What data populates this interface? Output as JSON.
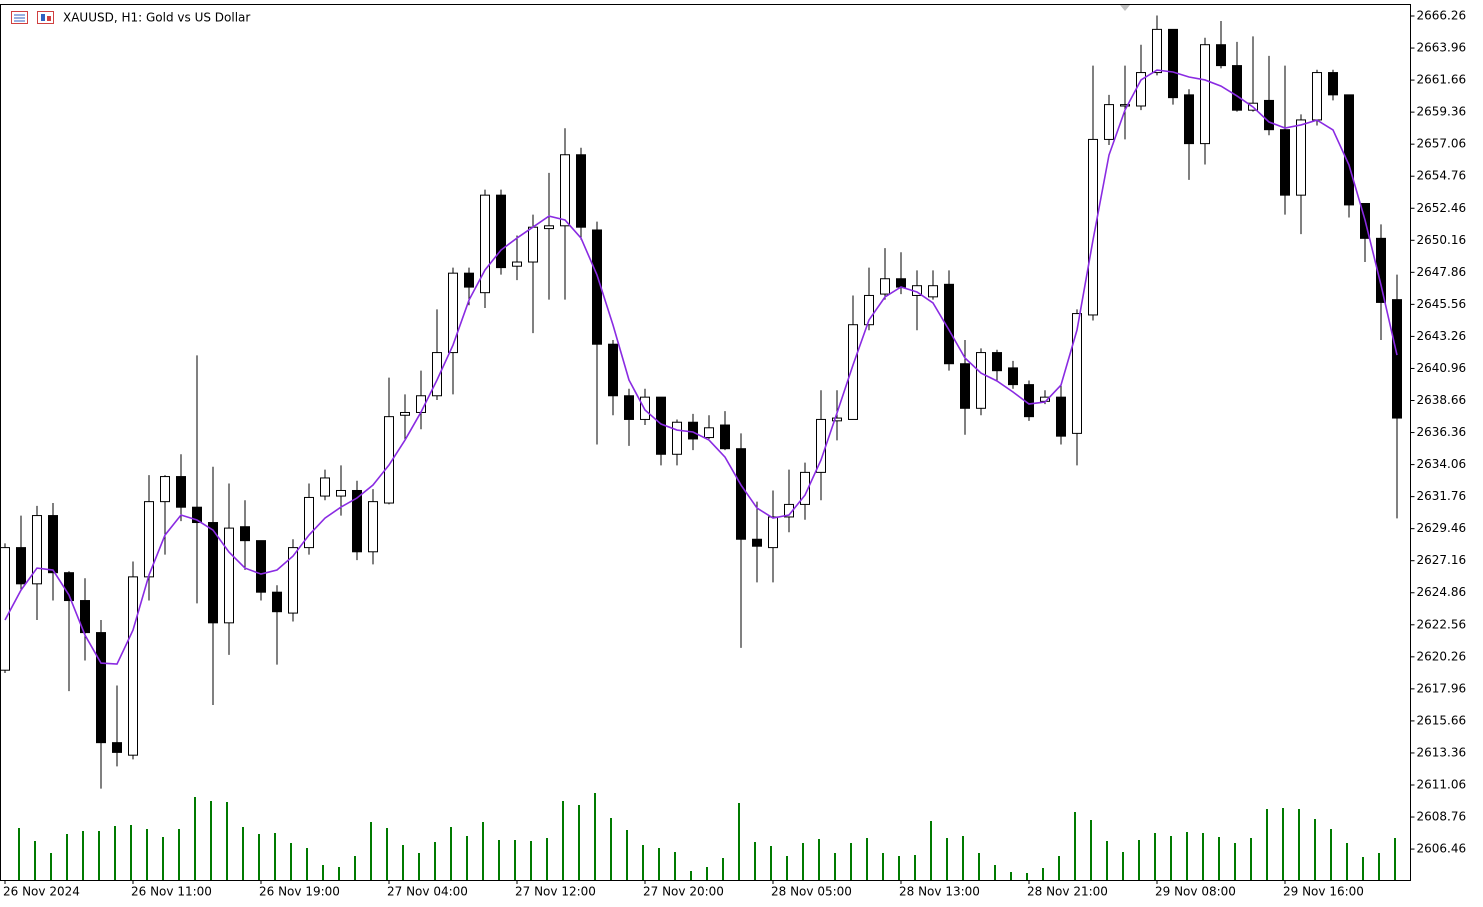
{
  "chart_data": {
    "type": "candlestick",
    "title": "XAUUSD, H1:  Gold vs US Dollar",
    "categories": [
      "26 Nov 2024",
      null,
      null,
      null,
      null,
      null,
      null,
      null,
      "26 Nov 11:00",
      null,
      null,
      null,
      null,
      null,
      null,
      null,
      "26 Nov 19:00",
      null,
      null,
      null,
      null,
      null,
      null,
      null,
      "27 Nov 04:00",
      null,
      null,
      null,
      null,
      null,
      null,
      null,
      "27 Nov 12:00",
      null,
      null,
      null,
      null,
      null,
      null,
      null,
      "27 Nov 20:00",
      null,
      null,
      null,
      null,
      null,
      null,
      null,
      "28 Nov 05:00",
      null,
      null,
      null,
      null,
      null,
      null,
      null,
      "28 Nov 13:00",
      null,
      null,
      null,
      null,
      null,
      null,
      null,
      "28 Nov 21:00",
      null,
      null,
      null,
      null,
      null,
      null,
      null,
      "29 Nov 08:00",
      null,
      null,
      null,
      null,
      null,
      null,
      null,
      "29 Nov 16:00",
      null,
      null,
      null,
      null,
      null,
      null,
      null
    ],
    "open": [
      2619.3,
      2628.1,
      2625.5,
      2630.4,
      2626.3,
      2624.3,
      2622.0,
      2614.1,
      2613.2,
      2626.0,
      2631.4,
      2633.2,
      2631.0,
      2629.9,
      2622.7,
      2629.6,
      2628.6,
      2624.9,
      2623.4,
      2628.1,
      2631.8,
      2631.8,
      2632.2,
      2627.8,
      2631.3,
      2637.6,
      2637.8,
      2639.0,
      2642.1,
      2647.8,
      2646.4,
      2653.4,
      2648.3,
      2648.6,
      2651.0,
      2651.2,
      2656.3,
      2650.9,
      2642.7,
      2639.0,
      2637.3,
      2638.9,
      2634.8,
      2637.1,
      2636.0,
      2636.9,
      2635.2,
      2628.7,
      2628.1,
      2630.3,
      2631.2,
      2633.5,
      2637.2,
      2637.3,
      2644.1,
      2646.3,
      2647.4,
      2646.2,
      2646.1,
      2647.0,
      2641.3,
      2638.1,
      2642.1,
      2641.0,
      2639.8,
      2638.6,
      2638.9,
      2636.3,
      2644.8,
      2657.4,
      2659.8,
      2659.8,
      2662.2,
      2665.3,
      2660.6,
      2657.1,
      2664.2,
      2662.7,
      2659.5,
      2660.2,
      2658.1,
      2653.4,
      2658.8,
      2662.2,
      2660.6,
      2652.8,
      2650.3,
      2645.9
    ],
    "high": [
      2628.4,
      2630.4,
      2631.1,
      2631.3,
      2626.4,
      2625.9,
      2622.9,
      2618.2,
      2627.1,
      2633.3,
      2633.3,
      2634.8,
      2641.9,
      2633.9,
      2632.7,
      2631.5,
      2628.6,
      2625.4,
      2628.7,
      2632.7,
      2633.7,
      2634.0,
      2632.9,
      2632.3,
      2640.3,
      2639.1,
      2640.8,
      2645.2,
      2648.2,
      2648.2,
      2653.8,
      2653.8,
      2650.5,
      2652.0,
      2655.0,
      2658.2,
      2656.8,
      2651.5,
      2643.0,
      2639.5,
      2639.5,
      2638.9,
      2637.3,
      2637.7,
      2637.6,
      2637.9,
      2636.3,
      2631.4,
      2632.2,
      2633.7,
      2634.2,
      2639.4,
      2639.4,
      2646.2,
      2648.2,
      2649.6,
      2649.3,
      2648.0,
      2648.0,
      2648.0,
      2643.0,
      2642.4,
      2642.3,
      2641.5,
      2640.1,
      2639.4,
      2639.8,
      2645.2,
      2662.7,
      2660.6,
      2662.7,
      2664.2,
      2666.3,
      2665.3,
      2661.0,
      2664.7,
      2665.9,
      2664.4,
      2664.8,
      2663.4,
      2662.7,
      2659.2,
      2662.4,
      2662.4,
      2660.6,
      2652.8,
      2651.3,
      2647.7
    ],
    "low": [
      2619.1,
      2625.0,
      2622.9,
      2624.3,
      2617.8,
      2620.0,
      2610.8,
      2612.4,
      2612.9,
      2624.3,
      2627.6,
      2630.0,
      2624.1,
      2616.8,
      2620.4,
      2626.5,
      2624.3,
      2619.7,
      2622.8,
      2627.6,
      2631.5,
      2630.4,
      2627.2,
      2626.9,
      2631.2,
      2635.8,
      2636.6,
      2638.7,
      2639.1,
      2645.5,
      2645.3,
      2647.7,
      2647.3,
      2643.5,
      2645.9,
      2645.9,
      2650.2,
      2635.5,
      2637.6,
      2635.4,
      2636.9,
      2634.0,
      2634.0,
      2635.1,
      2635.9,
      2635.1,
      2620.9,
      2625.6,
      2625.6,
      2629.2,
      2630.1,
      2631.5,
      2635.8,
      2637.3,
      2643.7,
      2645.9,
      2646.3,
      2643.7,
      2645.9,
      2640.8,
      2636.2,
      2637.6,
      2640.1,
      2639.5,
      2637.2,
      2638.4,
      2635.5,
      2634.0,
      2644.4,
      2657.0,
      2657.4,
      2659.5,
      2662.0,
      2659.9,
      2654.5,
      2655.6,
      2662.5,
      2659.4,
      2659.4,
      2657.7,
      2652.0,
      2650.6,
      2658.4,
      2660.2,
      2651.8,
      2648.6,
      2643.0,
      2630.2
    ],
    "close": [
      2628.1,
      2625.5,
      2630.4,
      2626.3,
      2624.3,
      2622.0,
      2614.1,
      2613.4,
      2626.0,
      2631.4,
      2633.2,
      2631.0,
      2629.9,
      2622.7,
      2629.5,
      2628.6,
      2624.9,
      2623.5,
      2628.1,
      2631.7,
      2633.1,
      2632.2,
      2627.8,
      2631.4,
      2637.5,
      2637.8,
      2639.0,
      2642.1,
      2647.8,
      2646.8,
      2653.4,
      2648.2,
      2648.6,
      2651.1,
      2651.2,
      2656.3,
      2651.1,
      2642.7,
      2639.0,
      2637.3,
      2638.9,
      2634.8,
      2637.1,
      2635.9,
      2636.7,
      2635.2,
      2628.7,
      2628.2,
      2630.3,
      2631.2,
      2633.5,
      2637.3,
      2637.4,
      2644.1,
      2646.2,
      2647.4,
      2646.8,
      2646.9,
      2646.9,
      2641.3,
      2638.1,
      2642.1,
      2640.8,
      2639.8,
      2637.5,
      2638.9,
      2636.1,
      2644.9,
      2657.4,
      2659.9,
      2659.9,
      2662.2,
      2665.3,
      2660.4,
      2657.1,
      2664.2,
      2662.7,
      2659.5,
      2660.0,
      2658.1,
      2653.4,
      2658.8,
      2662.2,
      2660.6,
      2652.7,
      2650.3,
      2645.7,
      2637.4
    ],
    "ma": [
      2622.9,
      2625.05,
      2626.63,
      2626.49,
      2624.69,
      2621.82,
      2619.81,
      2619.74,
      2622.18,
      2626.13,
      2629.0,
      2630.44,
      2630.08,
      2629.36,
      2627.78,
      2626.63,
      2626.2,
      2626.49,
      2627.49,
      2629.0,
      2630.22,
      2631.01,
      2631.66,
      2632.59,
      2634.03,
      2635.82,
      2637.83,
      2640.13,
      2642.64,
      2645.87,
      2648.03,
      2649.46,
      2650.32,
      2651.11,
      2651.9,
      2651.62,
      2650.32,
      2647.67,
      2644.08,
      2640.13,
      2637.98,
      2636.97,
      2636.54,
      2636.4,
      2635.82,
      2634.6,
      2632.59,
      2630.94,
      2630.22,
      2630.44,
      2631.87,
      2634.39,
      2637.76,
      2641.21,
      2644.44,
      2646.09,
      2646.81,
      2646.45,
      2645.66,
      2643.72,
      2641.71,
      2640.63,
      2640.06,
      2639.27,
      2638.41,
      2638.55,
      2639.77,
      2643.72,
      2650.18,
      2656.28,
      2659.51,
      2661.67,
      2662.38,
      2662.24,
      2661.88,
      2661.67,
      2661.23,
      2660.52,
      2659.73,
      2658.65,
      2658.22,
      2658.44,
      2658.79,
      2658.08,
      2655.56,
      2651.62,
      2646.95,
      2641.92
    ],
    "volume": [
      null,
      52,
      39,
      27,
      46,
      49,
      49,
      54,
      55,
      51,
      43,
      51,
      83,
      79,
      78,
      53,
      46,
      47,
      37,
      32,
      15,
      13,
      24,
      58,
      52,
      35,
      27,
      38,
      53,
      44,
      58,
      40,
      40,
      39,
      42,
      79,
      75,
      87,
      62,
      50,
      35,
      32,
      28,
      9,
      13,
      22,
      77,
      38,
      34,
      24,
      37,
      41,
      27,
      37,
      42,
      27,
      24,
      25,
      59,
      42,
      44,
      27,
      15,
      8,
      7,
      12,
      24,
      68,
      60,
      39,
      28,
      40,
      47,
      44,
      48,
      47,
      43,
      37,
      42,
      71,
      72,
      71,
      61,
      51,
      37,
      23,
      27,
      42
    ],
    "up_color": "#ffffff",
    "down_color": "#000000",
    "ma_color": "#8a2be2",
    "volume_color": "#007a00",
    "ylim": [
      2604.24,
      2667.05
    ],
    "yticks": [
      2666.26,
      2663.96,
      2661.66,
      2659.36,
      2657.06,
      2654.76,
      2652.46,
      2650.16,
      2647.86,
      2645.56,
      2643.26,
      2640.96,
      2638.66,
      2636.36,
      2634.06,
      2631.76,
      2629.46,
      2627.16,
      2624.86,
      2622.56,
      2620.26,
      2617.96,
      2615.66,
      2613.36,
      2611.06,
      2608.76,
      2606.46
    ]
  }
}
